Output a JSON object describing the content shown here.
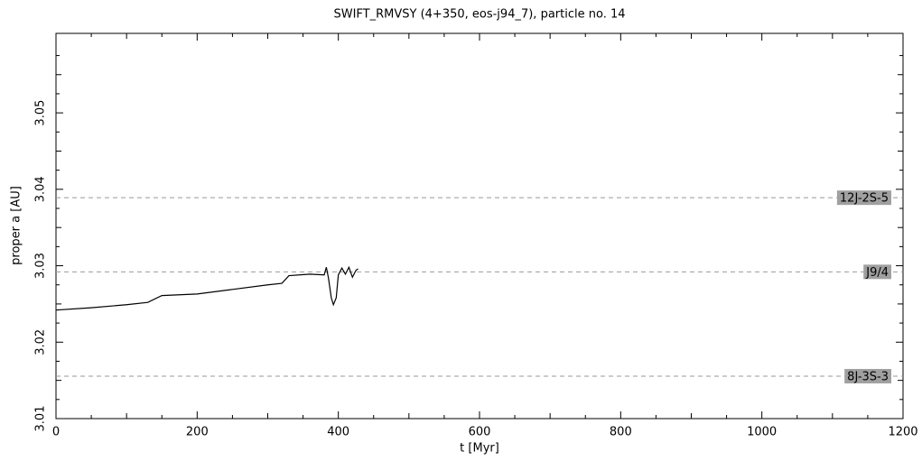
{
  "chart_data": {
    "type": "line",
    "title": "SWIFT_RMVSY (4+350, eos-j94_7), particle no. 14",
    "xlabel": "t [Myr]",
    "ylabel": "proper a [AU]",
    "x": [
      0,
      50,
      100,
      130,
      150,
      200,
      250,
      300,
      320,
      330,
      360,
      380,
      383,
      386,
      390,
      393,
      397,
      400,
      405,
      410,
      415,
      420,
      425,
      428
    ],
    "series": [
      {
        "color": "#000000",
        "values": [
          3.0242,
          3.0245,
          3.0249,
          3.0252,
          3.0261,
          3.0263,
          3.0269,
          3.0275,
          3.0277,
          3.0287,
          3.0289,
          3.0288,
          3.0298,
          3.0284,
          3.0258,
          3.0249,
          3.0258,
          3.0288,
          3.0297,
          3.0289,
          3.0298,
          3.0285,
          3.0294,
          3.0296
        ]
      }
    ],
    "resonances": [
      {
        "label": "12J-2S-5",
        "value": 3.0389
      },
      {
        "label": "J9/4",
        "value": 3.0292
      },
      {
        "label": "8J-3S-3",
        "value": 3.01555
      }
    ],
    "xlim": [
      0,
      1200
    ],
    "xticks": [
      0,
      200,
      400,
      600,
      800,
      1000,
      1200
    ],
    "ylim": [
      3.01,
      3.0604
    ],
    "yticks": [
      3.01,
      3.02,
      3.03,
      3.04,
      3.05
    ]
  }
}
